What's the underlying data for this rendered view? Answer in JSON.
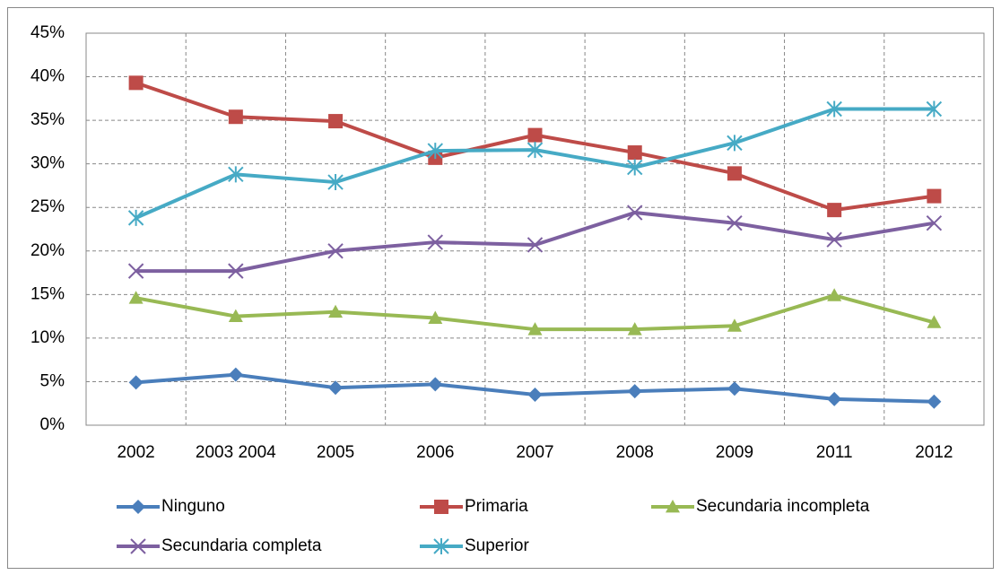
{
  "chart_data": {
    "type": "line",
    "categories": [
      "2002",
      "2003 2004",
      "2005",
      "2006",
      "2007",
      "2008",
      "2009",
      "2011",
      "2012"
    ],
    "series": [
      {
        "name": "Ninguno",
        "color": "#4a7ebb",
        "marker": "diamond",
        "values": [
          4.9,
          5.8,
          4.3,
          4.7,
          3.5,
          3.9,
          4.2,
          3.0,
          2.7
        ]
      },
      {
        "name": "Primaria",
        "color": "#be4b48",
        "marker": "square",
        "values": [
          39.3,
          35.4,
          34.9,
          30.7,
          33.3,
          31.3,
          28.9,
          24.7,
          26.3
        ]
      },
      {
        "name": "Secundaria incompleta",
        "color": "#98b954",
        "marker": "triangle",
        "values": [
          14.6,
          12.5,
          13.0,
          12.3,
          11.0,
          11.0,
          11.4,
          14.9,
          11.8
        ]
      },
      {
        "name": "Secundaria completa",
        "color": "#7d60a0",
        "marker": "x",
        "values": [
          17.7,
          17.7,
          20.0,
          21.0,
          20.7,
          24.4,
          23.2,
          21.3,
          23.2
        ]
      },
      {
        "name": "Superior",
        "color": "#46aac5",
        "marker": "star",
        "values": [
          23.8,
          28.8,
          27.9,
          31.5,
          31.6,
          29.6,
          32.4,
          36.3,
          36.3
        ]
      }
    ],
    "ylim": [
      0,
      45
    ],
    "yticks": [
      {
        "value": 0,
        "label": "0%"
      },
      {
        "value": 5,
        "label": "5%"
      },
      {
        "value": 10,
        "label": "10%"
      },
      {
        "value": 15,
        "label": "15%"
      },
      {
        "value": 20,
        "label": "20%"
      },
      {
        "value": 25,
        "label": "25%"
      },
      {
        "value": 30,
        "label": "30%"
      },
      {
        "value": 35,
        "label": "35%"
      },
      {
        "value": 40,
        "label": "40%"
      },
      {
        "value": 45,
        "label": "45%"
      }
    ],
    "grid": true,
    "legend": "bottom"
  }
}
